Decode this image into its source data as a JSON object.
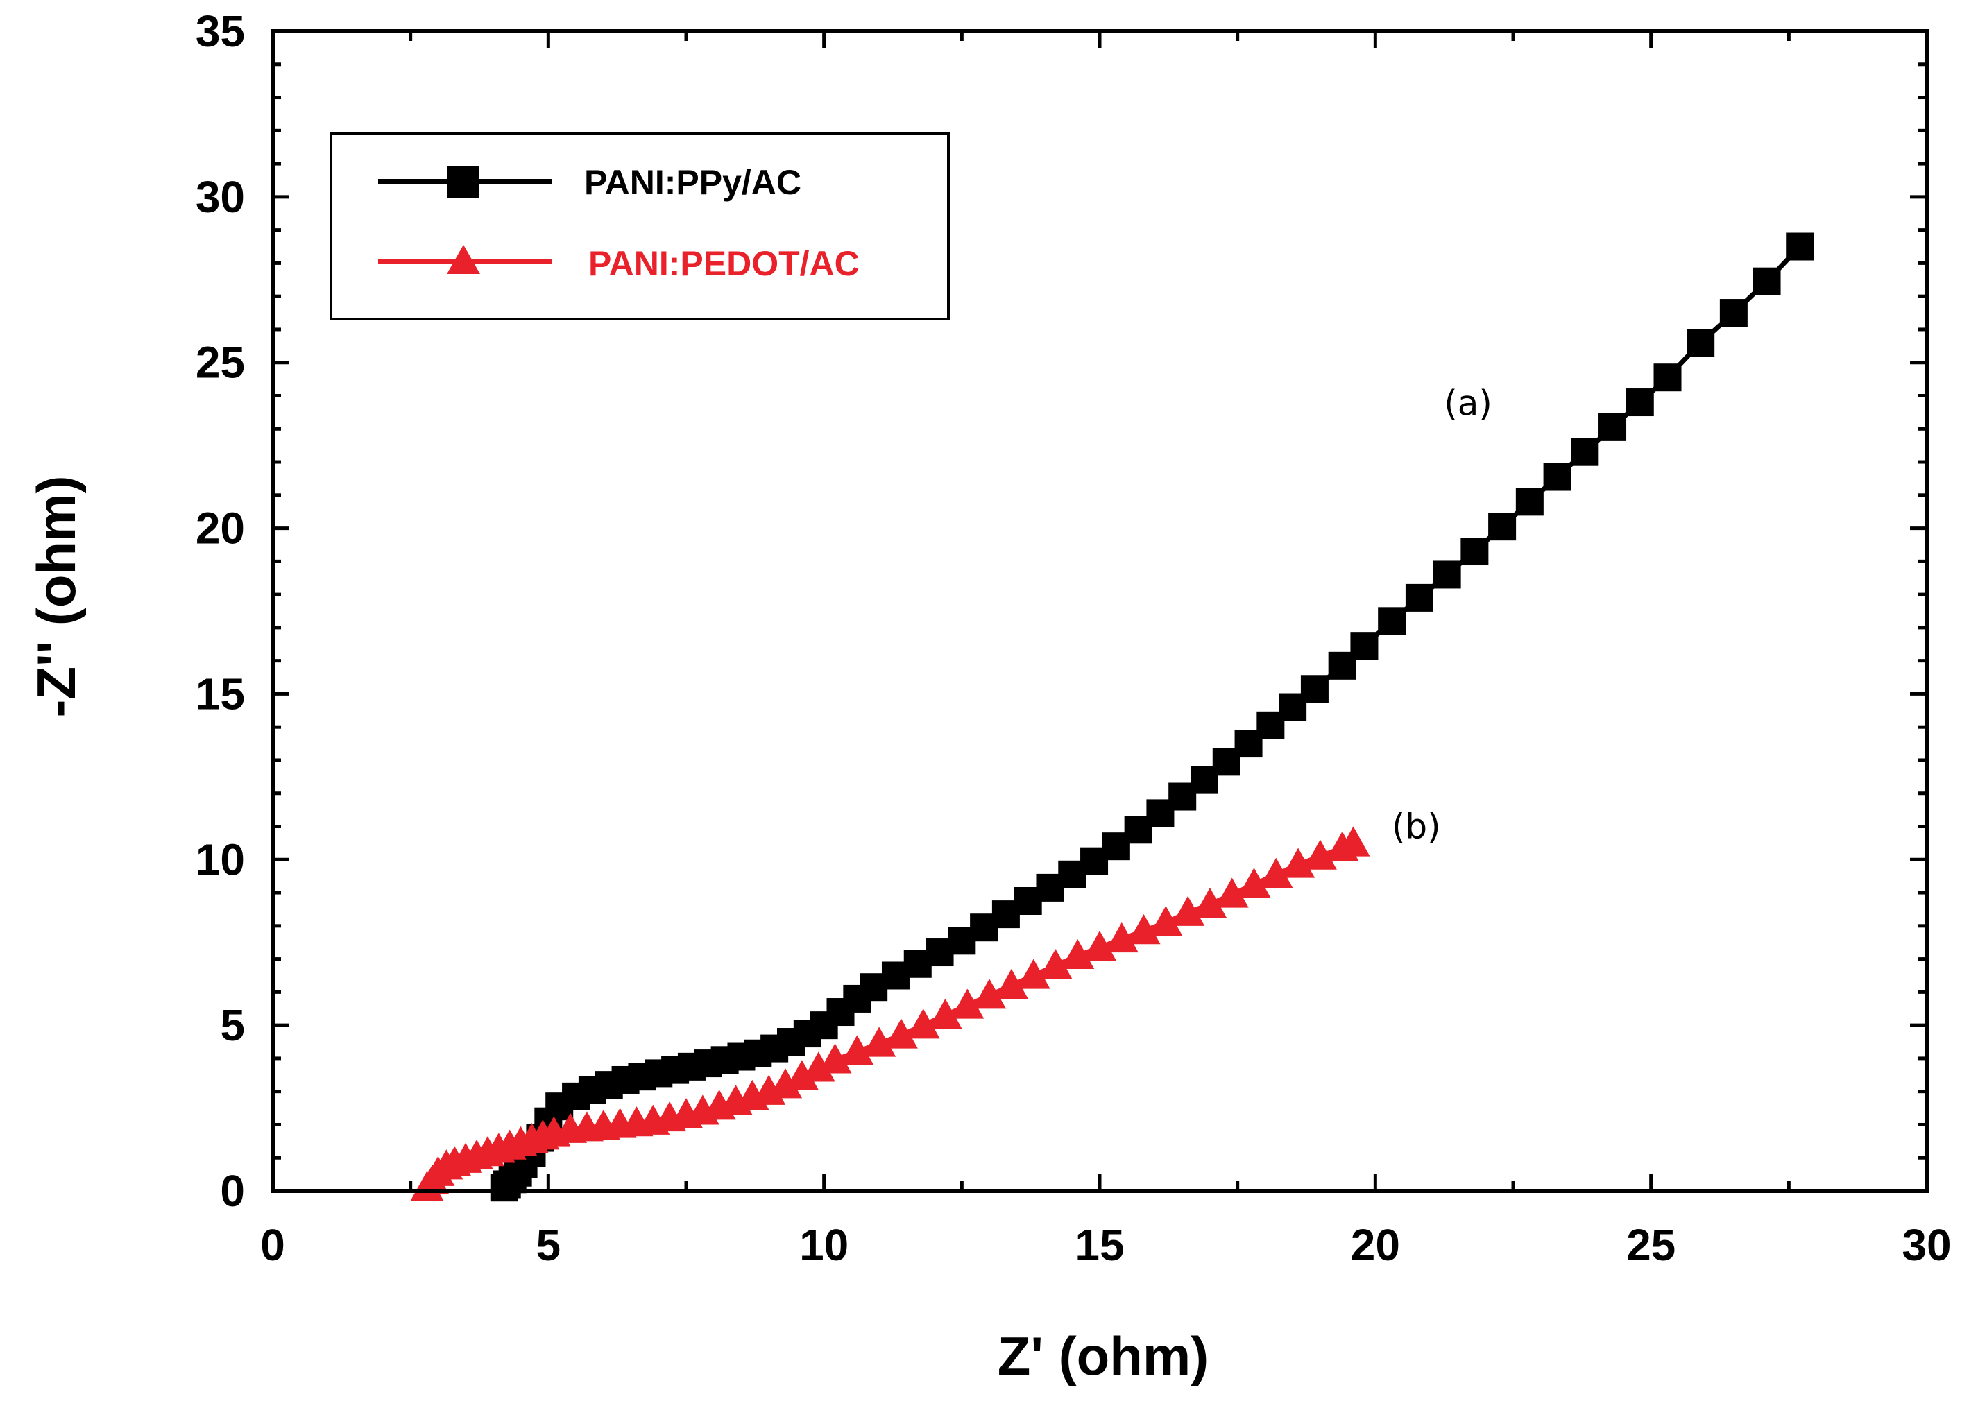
{
  "chart_data": {
    "type": "scatter",
    "title": "",
    "xlabel": "Z' (ohm)",
    "ylabel": "-Z'' (ohm)",
    "xlim": [
      0,
      30
    ],
    "ylim": [
      0,
      35
    ],
    "xticks": [
      "0",
      "5",
      "10",
      "15",
      "20",
      "25",
      "30"
    ],
    "yticks": [
      "0",
      "5",
      "10",
      "15",
      "20",
      "25",
      "30",
      "35"
    ],
    "grid": false,
    "legend_position": "top-left",
    "colors": {
      "a": "#000000",
      "b": "#e8212a"
    },
    "series": [
      {
        "name": "PANI:PPy/AC",
        "marker": "square",
        "color": "#000000",
        "label": "(a)",
        "x": [
          4.2,
          4.25,
          4.35,
          4.45,
          4.55,
          4.7,
          4.85,
          5.0,
          5.2,
          5.5,
          5.8,
          6.1,
          6.4,
          6.7,
          7.0,
          7.3,
          7.6,
          7.9,
          8.2,
          8.5,
          8.8,
          9.1,
          9.4,
          9.7,
          10.0,
          10.3,
          10.6,
          10.9,
          11.3,
          11.7,
          12.1,
          12.5,
          12.9,
          13.3,
          13.7,
          14.1,
          14.5,
          14.9,
          15.3,
          15.7,
          16.1,
          16.5,
          16.9,
          17.3,
          17.7,
          18.1,
          18.5,
          18.9,
          19.4,
          19.8,
          20.3,
          20.8,
          21.3,
          21.8,
          22.3,
          22.8,
          23.3,
          23.8,
          24.3,
          24.8,
          25.3,
          25.9,
          26.5,
          27.1,
          27.7
        ],
        "y": [
          0.1,
          0.2,
          0.35,
          0.55,
          0.8,
          1.15,
          1.6,
          2.1,
          2.55,
          2.85,
          3.05,
          3.2,
          3.35,
          3.45,
          3.55,
          3.65,
          3.75,
          3.85,
          3.95,
          4.05,
          4.15,
          4.3,
          4.5,
          4.75,
          5.0,
          5.4,
          5.8,
          6.15,
          6.5,
          6.85,
          7.2,
          7.55,
          7.95,
          8.35,
          8.75,
          9.15,
          9.55,
          9.95,
          10.4,
          10.9,
          11.4,
          11.9,
          12.4,
          12.95,
          13.5,
          14.05,
          14.6,
          15.15,
          15.85,
          16.45,
          17.2,
          17.9,
          18.6,
          19.3,
          20.05,
          20.8,
          21.55,
          22.3,
          23.05,
          23.8,
          24.55,
          25.6,
          26.5,
          27.45,
          28.5
        ]
      },
      {
        "name": "PANI:PEDOT/AC",
        "marker": "triangle",
        "color": "#e8212a",
        "label": "(b)",
        "x": [
          2.8,
          2.9,
          3.0,
          3.15,
          3.3,
          3.5,
          3.7,
          3.9,
          4.1,
          4.3,
          4.5,
          4.7,
          4.9,
          5.1,
          5.4,
          5.7,
          6.0,
          6.3,
          6.6,
          6.9,
          7.2,
          7.5,
          7.8,
          8.1,
          8.4,
          8.7,
          9.0,
          9.3,
          9.6,
          9.9,
          10.2,
          10.6,
          11.0,
          11.4,
          11.8,
          12.2,
          12.6,
          13.0,
          13.4,
          13.8,
          14.2,
          14.6,
          15.0,
          15.4,
          15.8,
          16.2,
          16.6,
          17.0,
          17.4,
          17.8,
          18.2,
          18.6,
          19.0,
          19.4,
          19.6
        ],
        "y": [
          0.1,
          0.3,
          0.55,
          0.75,
          0.85,
          0.95,
          1.05,
          1.15,
          1.25,
          1.35,
          1.45,
          1.55,
          1.65,
          1.75,
          1.85,
          1.9,
          1.95,
          2.0,
          2.05,
          2.1,
          2.2,
          2.3,
          2.4,
          2.55,
          2.7,
          2.85,
          3.0,
          3.2,
          3.45,
          3.7,
          3.95,
          4.2,
          4.45,
          4.7,
          5.0,
          5.3,
          5.6,
          5.9,
          6.2,
          6.5,
          6.8,
          7.1,
          7.35,
          7.6,
          7.85,
          8.1,
          8.4,
          8.65,
          8.95,
          9.25,
          9.55,
          9.85,
          10.1,
          10.35,
          10.5
        ]
      }
    ],
    "annotations": [
      {
        "text": "(a)",
        "x": 22.0,
        "y": 23.0
      },
      {
        "text": "(b)",
        "x": 20.8,
        "y": 10.6
      }
    ]
  }
}
